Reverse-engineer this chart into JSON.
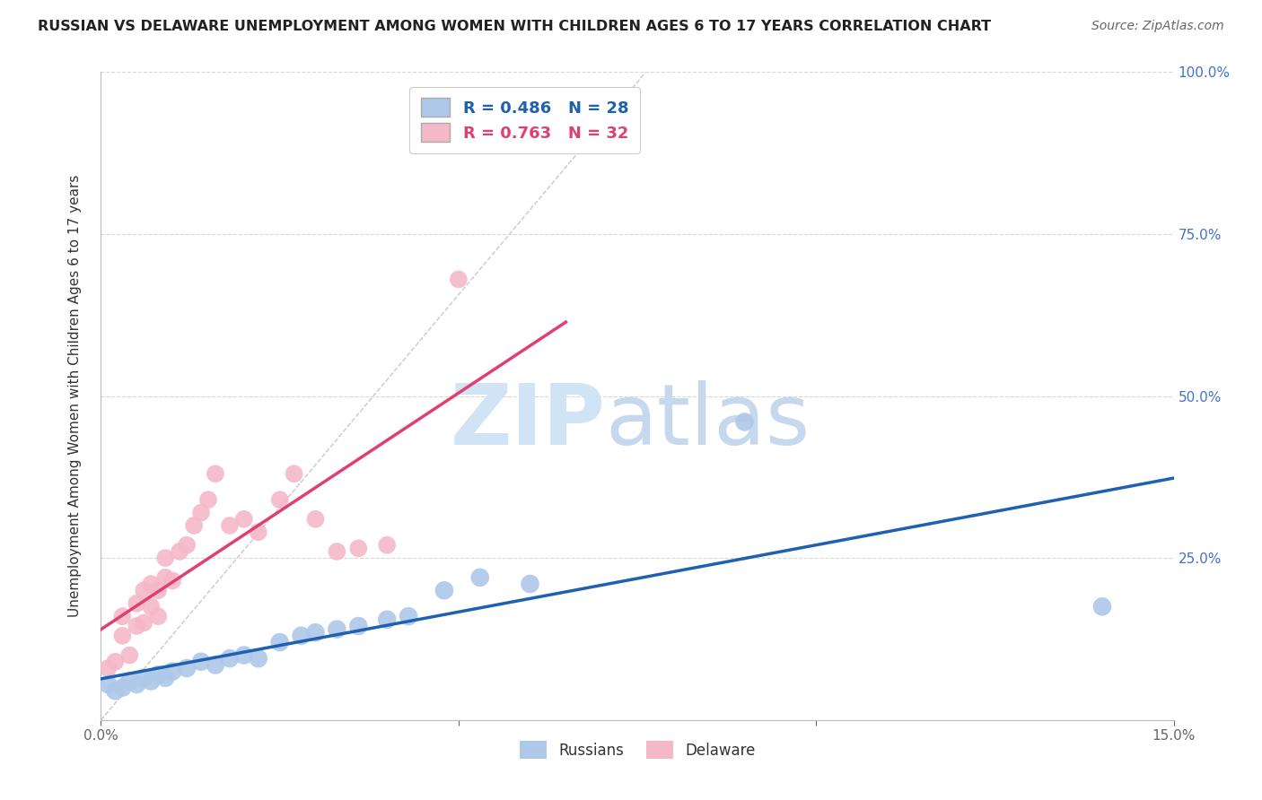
{
  "title": "RUSSIAN VS DELAWARE UNEMPLOYMENT AMONG WOMEN WITH CHILDREN AGES 6 TO 17 YEARS CORRELATION CHART",
  "source": "Source: ZipAtlas.com",
  "ylabel": "Unemployment Among Women with Children Ages 6 to 17 years",
  "xlim": [
    0.0,
    0.15
  ],
  "ylim": [
    0.0,
    1.0
  ],
  "russians_x": [
    0.001,
    0.002,
    0.003,
    0.004,
    0.005,
    0.006,
    0.007,
    0.008,
    0.009,
    0.01,
    0.012,
    0.014,
    0.016,
    0.018,
    0.02,
    0.022,
    0.025,
    0.028,
    0.03,
    0.033,
    0.036,
    0.04,
    0.043,
    0.048,
    0.053,
    0.06,
    0.09,
    0.14
  ],
  "russians_y": [
    0.055,
    0.045,
    0.05,
    0.06,
    0.055,
    0.065,
    0.06,
    0.07,
    0.065,
    0.075,
    0.08,
    0.09,
    0.085,
    0.095,
    0.1,
    0.095,
    0.12,
    0.13,
    0.135,
    0.14,
    0.145,
    0.155,
    0.16,
    0.2,
    0.22,
    0.21,
    0.46,
    0.175
  ],
  "delaware_x": [
    0.001,
    0.002,
    0.003,
    0.003,
    0.004,
    0.005,
    0.005,
    0.006,
    0.006,
    0.007,
    0.007,
    0.008,
    0.008,
    0.009,
    0.009,
    0.01,
    0.011,
    0.012,
    0.013,
    0.014,
    0.015,
    0.016,
    0.018,
    0.02,
    0.022,
    0.025,
    0.027,
    0.03,
    0.033,
    0.036,
    0.04,
    0.05
  ],
  "delaware_y": [
    0.08,
    0.09,
    0.13,
    0.16,
    0.1,
    0.145,
    0.18,
    0.15,
    0.2,
    0.175,
    0.21,
    0.16,
    0.2,
    0.22,
    0.25,
    0.215,
    0.26,
    0.27,
    0.3,
    0.32,
    0.34,
    0.38,
    0.3,
    0.31,
    0.29,
    0.34,
    0.38,
    0.31,
    0.26,
    0.265,
    0.27,
    0.68
  ],
  "russians_R": 0.486,
  "russians_N": 28,
  "delaware_R": 0.763,
  "delaware_N": 32,
  "russians_color": "#adc8e8",
  "delaware_color": "#f5b8c8",
  "russians_line_color": "#2060b0",
  "delaware_line_color": "#e04070",
  "diagonal_color": "#c8c8c8",
  "watermark_zip_color": "#d0e4f5",
  "watermark_atlas_color": "#c5d8ee",
  "background_color": "#ffffff",
  "grid_color": "#d8d8d8",
  "right_axis_color": "#4472c4"
}
